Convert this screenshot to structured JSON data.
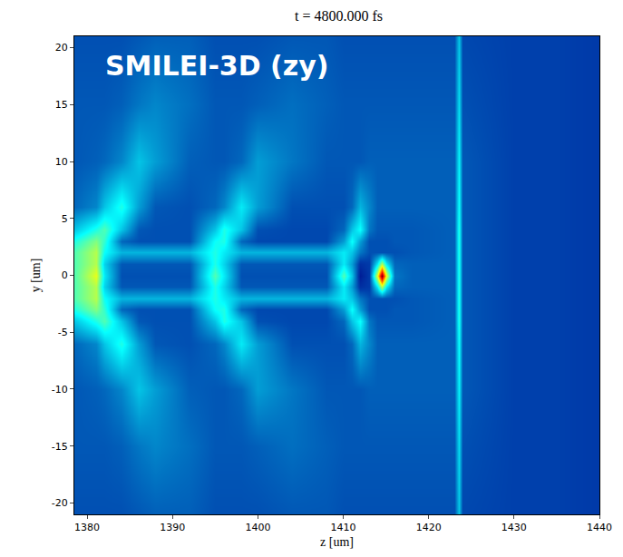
{
  "chart_data": {
    "type": "heatmap",
    "title": "t = 4800.000 fs",
    "x_label": "z [um]",
    "y_label": "y [um]",
    "annotations": [
      "SMILEI-3D (zy)"
    ],
    "color": "Jet",
    "color_range": [
      0,
      1
    ],
    "xlim": [
      1378.5,
      1440
    ],
    "ylim": [
      -21,
      21
    ],
    "xticks": [
      1380,
      1390,
      1400,
      1410,
      1420,
      1430,
      1440
    ],
    "yticks": [
      -20,
      -15,
      -10,
      -5,
      0,
      5,
      10,
      15,
      20
    ],
    "x": [
      1378.5,
      1381,
      1382,
      1384,
      1386,
      1388,
      1392,
      1395,
      1396,
      1398,
      1400,
      1404,
      1408,
      1410,
      1411,
      1412,
      1413,
      1414,
      1414.5,
      1415,
      1416,
      1418,
      1423,
      1423.5,
      1424,
      1430,
      1435,
      1440
    ],
    "y": [
      -21,
      -15,
      -10,
      -6,
      -4,
      -3,
      -2,
      -1,
      0,
      1,
      2,
      3,
      4,
      6,
      10,
      15,
      21
    ],
    "z": [
      [
        0.15,
        0.15,
        0.15,
        0.15,
        0.16,
        0.17,
        0.17,
        0.15,
        0.15,
        0.15,
        0.15,
        0.16,
        0.16,
        0.15,
        0.15,
        0.15,
        0.15,
        0.15,
        0.15,
        0.15,
        0.15,
        0.15,
        0.15,
        0.3,
        0.14,
        0.13,
        0.13,
        0.12
      ],
      [
        0.16,
        0.16,
        0.16,
        0.17,
        0.2,
        0.22,
        0.19,
        0.16,
        0.16,
        0.16,
        0.17,
        0.19,
        0.17,
        0.16,
        0.16,
        0.16,
        0.16,
        0.16,
        0.16,
        0.16,
        0.16,
        0.16,
        0.16,
        0.33,
        0.15,
        0.13,
        0.13,
        0.12
      ],
      [
        0.16,
        0.17,
        0.18,
        0.22,
        0.3,
        0.25,
        0.17,
        0.16,
        0.16,
        0.18,
        0.25,
        0.2,
        0.16,
        0.16,
        0.16,
        0.16,
        0.17,
        0.17,
        0.17,
        0.17,
        0.17,
        0.17,
        0.17,
        0.36,
        0.16,
        0.13,
        0.13,
        0.12
      ],
      [
        0.18,
        0.22,
        0.3,
        0.4,
        0.25,
        0.16,
        0.15,
        0.18,
        0.22,
        0.35,
        0.25,
        0.15,
        0.15,
        0.15,
        0.18,
        0.28,
        0.22,
        0.17,
        0.17,
        0.17,
        0.17,
        0.17,
        0.17,
        0.38,
        0.16,
        0.13,
        0.13,
        0.12
      ],
      [
        0.3,
        0.4,
        0.45,
        0.3,
        0.16,
        0.15,
        0.15,
        0.3,
        0.4,
        0.3,
        0.15,
        0.14,
        0.14,
        0.18,
        0.3,
        0.38,
        0.2,
        0.16,
        0.16,
        0.16,
        0.16,
        0.16,
        0.17,
        0.4,
        0.16,
        0.13,
        0.13,
        0.12
      ],
      [
        0.4,
        0.5,
        0.42,
        0.18,
        0.15,
        0.15,
        0.15,
        0.38,
        0.4,
        0.18,
        0.14,
        0.14,
        0.14,
        0.25,
        0.38,
        0.25,
        0.15,
        0.15,
        0.15,
        0.15,
        0.16,
        0.16,
        0.17,
        0.4,
        0.16,
        0.13,
        0.13,
        0.12
      ],
      [
        0.45,
        0.55,
        0.38,
        0.28,
        0.28,
        0.28,
        0.28,
        0.4,
        0.35,
        0.28,
        0.28,
        0.28,
        0.28,
        0.35,
        0.3,
        0.2,
        0.15,
        0.15,
        0.15,
        0.15,
        0.15,
        0.16,
        0.17,
        0.4,
        0.16,
        0.13,
        0.13,
        0.12
      ],
      [
        0.45,
        0.55,
        0.32,
        0.16,
        0.16,
        0.16,
        0.16,
        0.4,
        0.32,
        0.16,
        0.16,
        0.16,
        0.16,
        0.35,
        0.25,
        0.1,
        0.12,
        0.35,
        0.55,
        0.35,
        0.18,
        0.17,
        0.17,
        0.4,
        0.16,
        0.13,
        0.13,
        0.12
      ],
      [
        0.45,
        0.6,
        0.35,
        0.15,
        0.15,
        0.15,
        0.15,
        0.45,
        0.35,
        0.15,
        0.15,
        0.15,
        0.15,
        0.45,
        0.3,
        0.06,
        0.12,
        0.6,
        1.0,
        0.6,
        0.2,
        0.17,
        0.17,
        0.4,
        0.16,
        0.13,
        0.13,
        0.12
      ],
      [
        0.45,
        0.55,
        0.32,
        0.16,
        0.16,
        0.16,
        0.16,
        0.4,
        0.32,
        0.16,
        0.16,
        0.16,
        0.16,
        0.35,
        0.25,
        0.1,
        0.12,
        0.35,
        0.55,
        0.35,
        0.18,
        0.17,
        0.17,
        0.4,
        0.16,
        0.13,
        0.13,
        0.12
      ],
      [
        0.45,
        0.55,
        0.38,
        0.28,
        0.28,
        0.28,
        0.28,
        0.4,
        0.35,
        0.28,
        0.28,
        0.28,
        0.28,
        0.35,
        0.3,
        0.2,
        0.15,
        0.15,
        0.15,
        0.15,
        0.15,
        0.16,
        0.17,
        0.4,
        0.16,
        0.13,
        0.13,
        0.12
      ],
      [
        0.4,
        0.5,
        0.42,
        0.18,
        0.15,
        0.15,
        0.15,
        0.38,
        0.4,
        0.18,
        0.14,
        0.14,
        0.14,
        0.25,
        0.38,
        0.25,
        0.15,
        0.15,
        0.15,
        0.15,
        0.16,
        0.16,
        0.17,
        0.4,
        0.16,
        0.13,
        0.13,
        0.12
      ],
      [
        0.3,
        0.4,
        0.45,
        0.3,
        0.16,
        0.15,
        0.15,
        0.3,
        0.4,
        0.3,
        0.15,
        0.14,
        0.14,
        0.18,
        0.3,
        0.38,
        0.2,
        0.16,
        0.16,
        0.16,
        0.16,
        0.16,
        0.17,
        0.4,
        0.16,
        0.13,
        0.13,
        0.12
      ],
      [
        0.18,
        0.22,
        0.3,
        0.4,
        0.25,
        0.16,
        0.15,
        0.18,
        0.22,
        0.35,
        0.25,
        0.15,
        0.15,
        0.15,
        0.18,
        0.28,
        0.22,
        0.17,
        0.17,
        0.17,
        0.17,
        0.17,
        0.17,
        0.38,
        0.16,
        0.13,
        0.13,
        0.12
      ],
      [
        0.16,
        0.17,
        0.18,
        0.22,
        0.3,
        0.25,
        0.17,
        0.16,
        0.16,
        0.18,
        0.25,
        0.2,
        0.16,
        0.16,
        0.16,
        0.16,
        0.17,
        0.17,
        0.17,
        0.17,
        0.17,
        0.17,
        0.17,
        0.36,
        0.16,
        0.13,
        0.13,
        0.12
      ],
      [
        0.16,
        0.16,
        0.16,
        0.17,
        0.2,
        0.22,
        0.19,
        0.16,
        0.16,
        0.16,
        0.17,
        0.19,
        0.17,
        0.16,
        0.16,
        0.16,
        0.16,
        0.16,
        0.16,
        0.16,
        0.16,
        0.16,
        0.16,
        0.33,
        0.15,
        0.13,
        0.13,
        0.12
      ],
      [
        0.15,
        0.15,
        0.15,
        0.15,
        0.16,
        0.17,
        0.17,
        0.15,
        0.15,
        0.15,
        0.15,
        0.16,
        0.16,
        0.15,
        0.15,
        0.15,
        0.15,
        0.15,
        0.15,
        0.15,
        0.15,
        0.15,
        0.15,
        0.3,
        0.14,
        0.13,
        0.13,
        0.12
      ]
    ]
  }
}
